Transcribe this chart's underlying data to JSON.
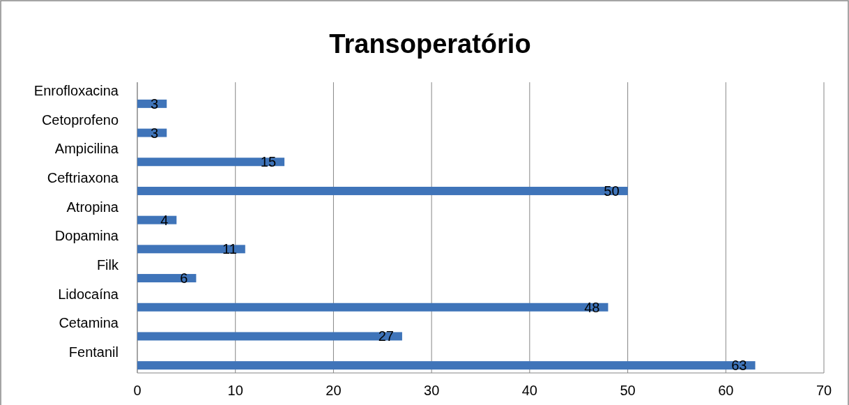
{
  "chart_data": {
    "type": "bar",
    "title": "Transoperatório",
    "orientation": "horizontal",
    "categories": [
      "Enrofloxacina",
      "Cetoprofeno",
      "Ampicilina",
      "Ceftriaxona",
      "Atropina",
      "Dopamina",
      "Filk",
      "Lidocaína",
      "Cetamina",
      "Fentanil"
    ],
    "values": [
      3,
      3,
      15,
      50,
      4,
      11,
      6,
      48,
      27,
      63
    ],
    "color": "#3f74b9",
    "xlim": [
      0,
      70
    ],
    "xticks": [
      0,
      10,
      20,
      30,
      40,
      50,
      60,
      70
    ],
    "grid": "x",
    "data_labels": true
  }
}
